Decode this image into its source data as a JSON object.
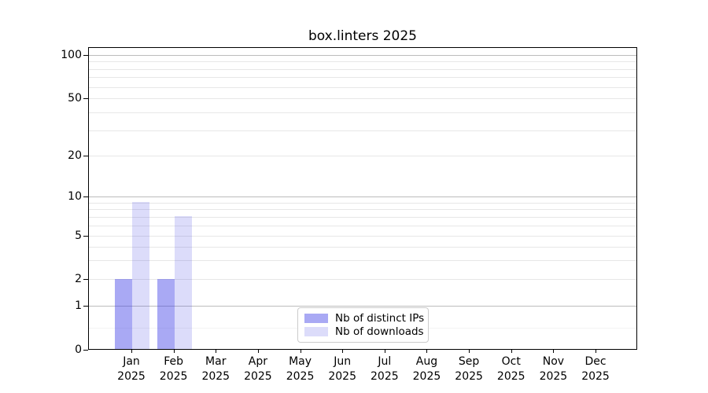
{
  "title": "box.linters 2025",
  "chart_data": {
    "type": "bar",
    "title": "box.linters 2025",
    "categories": [
      "Jan 2025",
      "Feb 2025",
      "Mar 2025",
      "Apr 2025",
      "May 2025",
      "Jun 2025",
      "Jul 2025",
      "Aug 2025",
      "Sep 2025",
      "Oct 2025",
      "Nov 2025",
      "Dec 2025"
    ],
    "series": [
      {
        "name": "Nb of distinct IPs",
        "color": "#a9a9f4",
        "fill": "rgba(64,64,231,0.45)",
        "values": [
          2,
          2,
          0,
          0,
          0,
          0,
          0,
          0,
          0,
          0,
          0,
          0
        ]
      },
      {
        "name": "Nb of downloads",
        "color": "#dcdcfa",
        "fill": "rgba(80,80,230,0.2)",
        "values": [
          9,
          7,
          0,
          0,
          0,
          0,
          0,
          0,
          0,
          0,
          0,
          0
        ]
      }
    ],
    "xlabel": "",
    "ylabel": "",
    "ylim": [
      0,
      113
    ],
    "y_scale": "log-like with 0 baseline",
    "y_ticks": [
      0,
      1,
      2,
      5,
      10,
      20,
      50,
      100
    ],
    "y_major_gridlines": [
      1,
      10,
      100
    ],
    "y_minor_gridlines": [
      0.5,
      2,
      3,
      4,
      5,
      6,
      7,
      8,
      9,
      20,
      30,
      40,
      50,
      60,
      70,
      80,
      90
    ],
    "grid": true,
    "legend_position": "lower center inside plot"
  }
}
